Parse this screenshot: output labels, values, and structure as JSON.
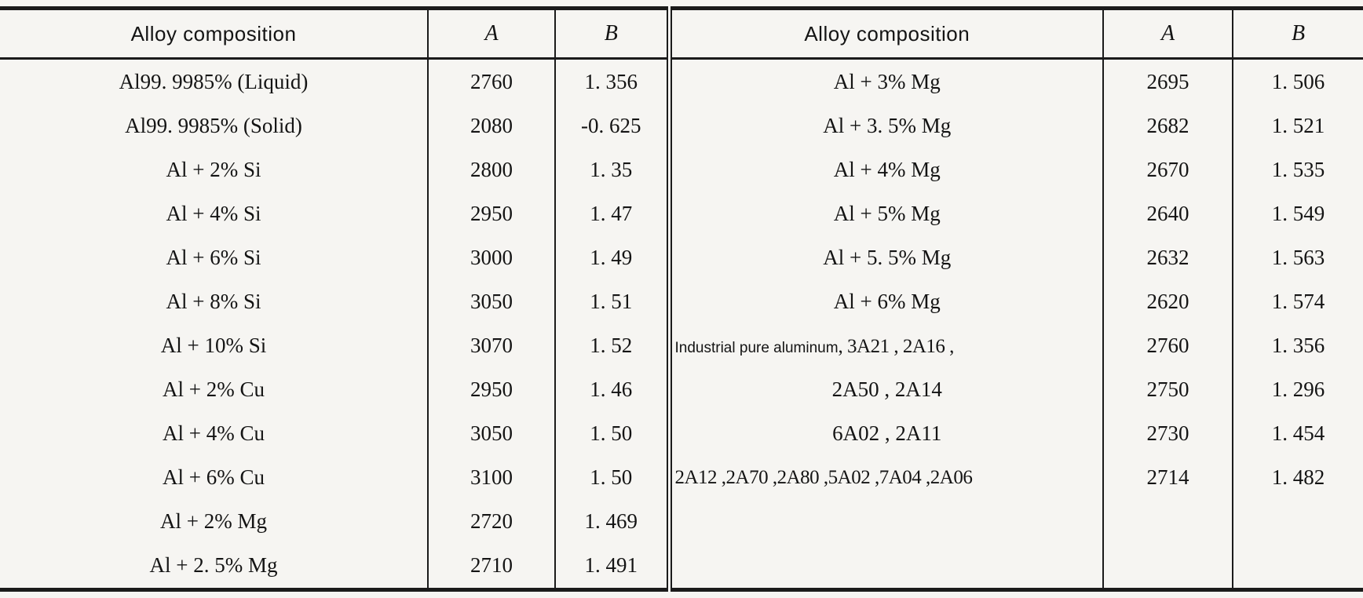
{
  "table": {
    "columns": [
      "Alloy composition",
      "A",
      "B"
    ],
    "left_rows": [
      {
        "composition": "Al99. 9985% (Liquid)",
        "a": "2760",
        "b": "1. 356"
      },
      {
        "composition": "Al99. 9985% (Solid)",
        "a": "2080",
        "b": "-0. 625"
      },
      {
        "composition": "Al + 2% Si",
        "a": "2800",
        "b": "1. 35"
      },
      {
        "composition": "Al + 4% Si",
        "a": "2950",
        "b": "1. 47"
      },
      {
        "composition": "Al + 6% Si",
        "a": "3000",
        "b": "1. 49"
      },
      {
        "composition": "Al + 8% Si",
        "a": "3050",
        "b": "1. 51"
      },
      {
        "composition": "Al + 10% Si",
        "a": "3070",
        "b": "1. 52"
      },
      {
        "composition": "Al + 2% Cu",
        "a": "2950",
        "b": "1. 46"
      },
      {
        "composition": "Al + 4% Cu",
        "a": "3050",
        "b": "1. 50"
      },
      {
        "composition": "Al + 6% Cu",
        "a": "3100",
        "b": "1. 50"
      },
      {
        "composition": "Al + 2% Mg",
        "a": "2720",
        "b": "1. 469"
      },
      {
        "composition": "Al + 2. 5% Mg",
        "a": "2710",
        "b": "1. 491"
      }
    ],
    "right_rows": [
      {
        "composition": "Al + 3% Mg",
        "a": "2695",
        "b": "1. 506"
      },
      {
        "composition": "Al + 3. 5% Mg",
        "a": "2682",
        "b": "1. 521"
      },
      {
        "composition": "Al + 4% Mg",
        "a": "2670",
        "b": "1. 535"
      },
      {
        "composition": "Al + 5% Mg",
        "a": "2640",
        "b": "1. 549"
      },
      {
        "composition": "Al + 5. 5% Mg",
        "a": "2632",
        "b": "1. 563"
      },
      {
        "composition": "Al + 6% Mg",
        "a": "2620",
        "b": "1. 574"
      },
      {
        "composition_prefix": "Industrial pure aluminum",
        "composition": ", 3A21 ,  2A16 ,",
        "a": "2760",
        "b": "1. 356"
      },
      {
        "composition": "2A50 ,  2A14",
        "a": "2750",
        "b": "1. 296"
      },
      {
        "composition": "6A02 ,  2A11",
        "a": "2730",
        "b": "1. 454"
      },
      {
        "composition": "2A12 ,2A70 ,2A80 ,5A02 ,7A04 ,2A06",
        "a": "2714",
        "b": "1. 482"
      },
      {
        "composition": "",
        "a": "",
        "b": ""
      },
      {
        "composition": "",
        "a": "",
        "b": ""
      }
    ]
  },
  "colors": {
    "paper_background": "#f6f5f2",
    "text": "#141414",
    "rule_lines": "#1b1b1b"
  }
}
